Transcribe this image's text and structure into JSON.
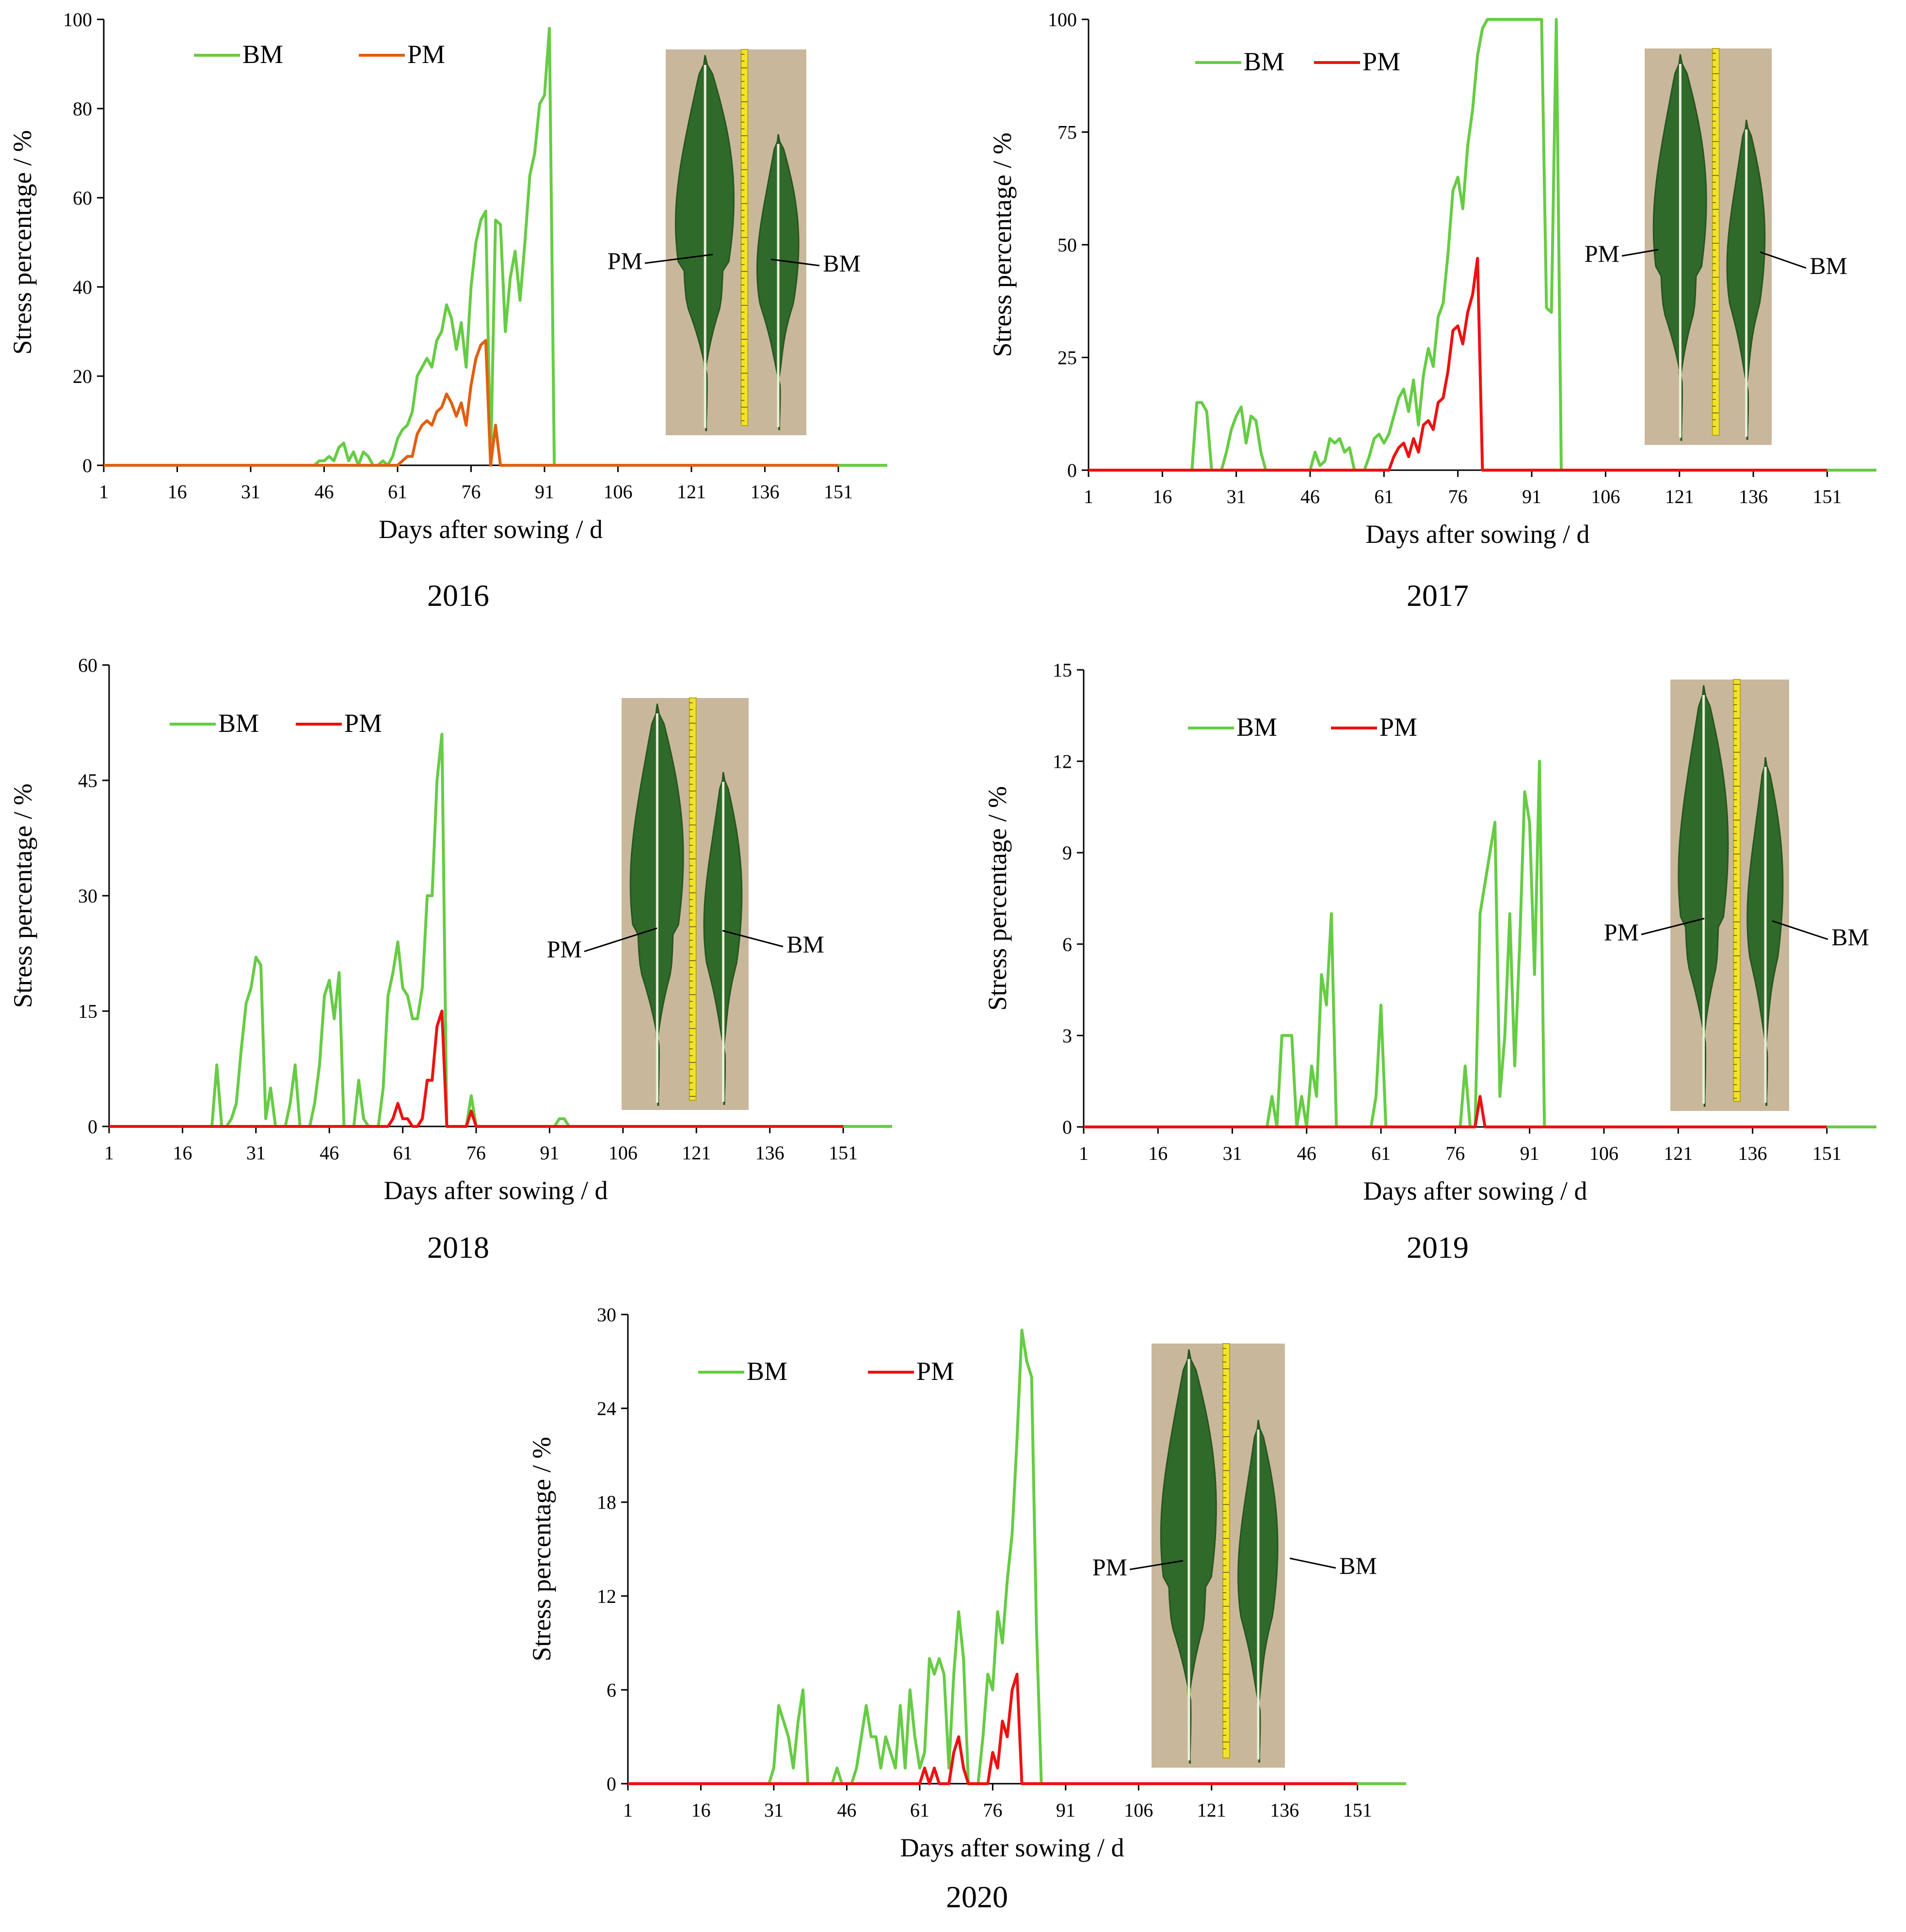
{
  "figure": {
    "series_colors": {
      "BM": "#66cc44",
      "PM_2016": "#e06010",
      "PM": "#ee1111"
    },
    "photo_colors": {
      "background": "#c9b79c",
      "leaf_dark": "#2f6a2a",
      "leaf_light": "#7fb53f",
      "ruler": "#f2e22a"
    }
  },
  "chart_data": [
    {
      "type": "line",
      "year": "2016",
      "xlabel": "Days after sowing / d",
      "ylabel": "Stress percentage / %",
      "xlim": [
        1,
        161
      ],
      "ylim": [
        0,
        100
      ],
      "xticks": [
        1,
        16,
        31,
        46,
        61,
        76,
        91,
        106,
        121,
        136,
        151
      ],
      "yticks": [
        0,
        20,
        40,
        60,
        80,
        100
      ],
      "legend": [
        "BM",
        "PM"
      ],
      "photo_labels": [
        "PM",
        "BM"
      ],
      "series": [
        {
          "name": "BM",
          "color": "#66cc44",
          "x": [
            1,
            44,
            45,
            46,
            47,
            48,
            49,
            50,
            51,
            52,
            53,
            54,
            55,
            56,
            57,
            58,
            59,
            60,
            61,
            62,
            63,
            64,
            65,
            66,
            67,
            68,
            69,
            70,
            71,
            72,
            73,
            74,
            75,
            76,
            77,
            78,
            79,
            80,
            81,
            82,
            83,
            84,
            85,
            86,
            87,
            88,
            89,
            90,
            91,
            92,
            93,
            94,
            95,
            152,
            161
          ],
          "y": [
            0,
            0,
            1,
            1,
            2,
            1,
            4,
            5,
            1,
            3,
            0,
            3,
            2,
            0,
            0,
            1,
            0,
            2,
            6,
            8,
            9,
            12,
            20,
            22,
            24,
            22,
            28,
            30,
            36,
            33,
            26,
            32,
            22,
            40,
            50,
            55,
            57,
            0,
            55,
            54,
            30,
            42,
            48,
            37,
            50,
            65,
            70,
            81,
            83,
            98,
            0,
            0,
            0,
            0,
            0
          ]
        },
        {
          "name": "PM",
          "color": "#e06010",
          "x": [
            1,
            61,
            62,
            63,
            64,
            65,
            66,
            67,
            68,
            69,
            70,
            71,
            72,
            73,
            74,
            75,
            76,
            77,
            78,
            79,
            80,
            81,
            82,
            151
          ],
          "y": [
            0,
            0,
            1,
            2,
            2,
            7,
            9,
            10,
            9,
            12,
            13,
            16,
            14,
            11,
            14,
            9,
            18,
            24,
            27,
            28,
            0,
            9,
            0,
            0
          ]
        }
      ]
    },
    {
      "type": "line",
      "year": "2017",
      "xlabel": "Days after sowing / d",
      "ylabel": "Stress percentage / %",
      "xlim": [
        1,
        161
      ],
      "ylim": [
        0,
        100
      ],
      "xticks": [
        1,
        16,
        31,
        46,
        61,
        76,
        91,
        106,
        121,
        136,
        151
      ],
      "yticks": [
        0,
        25,
        50,
        75,
        100
      ],
      "legend": [
        "BM",
        "PM"
      ],
      "photo_labels": [
        "PM",
        "BM"
      ],
      "series": [
        {
          "name": "BM",
          "color": "#66cc44",
          "x": [
            1,
            22,
            23,
            24,
            25,
            26,
            27,
            28,
            29,
            30,
            31,
            32,
            33,
            34,
            35,
            36,
            37,
            38,
            46,
            47,
            48,
            49,
            50,
            51,
            52,
            53,
            54,
            55,
            56,
            57,
            58,
            59,
            60,
            61,
            62,
            63,
            64,
            65,
            66,
            67,
            68,
            69,
            70,
            71,
            72,
            73,
            74,
            75,
            76,
            77,
            78,
            79,
            80,
            81,
            82,
            83,
            84,
            85,
            93,
            94,
            95,
            96,
            97,
            152,
            161
          ],
          "y": [
            0,
            0,
            15,
            15,
            13,
            0,
            0,
            0,
            4,
            9,
            12,
            14,
            6,
            12,
            11,
            4,
            0,
            0,
            0,
            4,
            1,
            2,
            7,
            6,
            7,
            4,
            5,
            0,
            0,
            0,
            3,
            7,
            8,
            6,
            8,
            12,
            16,
            18,
            13,
            20,
            10,
            21,
            27,
            23,
            34,
            37,
            48,
            62,
            65,
            58,
            72,
            80,
            92,
            98,
            100,
            100,
            100,
            100,
            100,
            36,
            35,
            100,
            0,
            0,
            0
          ]
        },
        {
          "name": "PM",
          "color": "#ee1111",
          "x": [
            1,
            62,
            63,
            64,
            65,
            66,
            67,
            68,
            69,
            70,
            71,
            72,
            73,
            74,
            75,
            76,
            77,
            78,
            79,
            80,
            81,
            82,
            83,
            151
          ],
          "y": [
            0,
            0,
            3,
            5,
            6,
            3,
            7,
            4,
            10,
            11,
            9,
            15,
            16,
            22,
            31,
            32,
            28,
            35,
            39,
            47,
            0,
            0,
            0,
            0
          ]
        }
      ]
    },
    {
      "type": "line",
      "year": "2018",
      "xlabel": "Days after sowing / d",
      "ylabel": "Stress percentage / %",
      "xlim": [
        1,
        161
      ],
      "ylim": [
        0,
        60
      ],
      "xticks": [
        1,
        16,
        31,
        46,
        61,
        76,
        91,
        106,
        121,
        136,
        151
      ],
      "yticks": [
        0,
        15,
        30,
        45,
        60
      ],
      "legend": [
        "BM",
        "PM"
      ],
      "photo_labels": [
        "PM",
        "BM"
      ],
      "series": [
        {
          "name": "BM",
          "color": "#66cc44",
          "x": [
            1,
            22,
            23,
            24,
            25,
            26,
            27,
            28,
            29,
            30,
            31,
            32,
            33,
            34,
            35,
            36,
            37,
            38,
            39,
            40,
            41,
            42,
            43,
            44,
            45,
            46,
            47,
            48,
            49,
            50,
            51,
            52,
            53,
            54,
            55,
            56,
            57,
            58,
            59,
            60,
            61,
            62,
            63,
            64,
            65,
            66,
            67,
            68,
            69,
            70,
            71,
            72,
            73,
            74,
            75,
            76,
            77,
            78,
            92,
            93,
            94,
            95,
            96,
            152,
            161
          ],
          "y": [
            0,
            0,
            8,
            0,
            0,
            1,
            3,
            10,
            16,
            18,
            22,
            21,
            1,
            5,
            0,
            0,
            0,
            3,
            8,
            0,
            0,
            0,
            3,
            8,
            17,
            19,
            14,
            20,
            0,
            0,
            0,
            6,
            1,
            0,
            0,
            0,
            5,
            17,
            20,
            24,
            18,
            17,
            14,
            14,
            18,
            30,
            30,
            45,
            51,
            0,
            0,
            0,
            0,
            0,
            4,
            0,
            0,
            0,
            0,
            1,
            1,
            0,
            0,
            0,
            0
          ]
        },
        {
          "name": "PM",
          "color": "#ee1111",
          "x": [
            1,
            58,
            59,
            60,
            61,
            62,
            63,
            64,
            65,
            66,
            67,
            68,
            69,
            70,
            71,
            72,
            73,
            74,
            75,
            76,
            77,
            151
          ],
          "y": [
            0,
            0,
            1,
            3,
            1,
            1,
            0,
            0,
            1,
            6,
            6,
            13,
            15,
            0,
            0,
            0,
            0,
            0,
            2,
            0,
            0,
            0
          ]
        }
      ]
    },
    {
      "type": "line",
      "year": "2019",
      "xlabel": "Days after sowing / d",
      "ylabel": "Stress percentage / %",
      "xlim": [
        1,
        161
      ],
      "ylim": [
        0,
        15
      ],
      "xticks": [
        1,
        16,
        31,
        46,
        61,
        76,
        91,
        106,
        121,
        136,
        151
      ],
      "yticks": [
        0,
        3,
        6,
        9,
        12,
        15
      ],
      "legend": [
        "BM",
        "PM"
      ],
      "photo_labels": [
        "PM",
        "BM"
      ],
      "series": [
        {
          "name": "BM",
          "color": "#66cc44",
          "x": [
            1,
            38,
            39,
            40,
            41,
            42,
            43,
            44,
            45,
            46,
            47,
            48,
            49,
            50,
            51,
            52,
            59,
            60,
            61,
            62,
            77,
            78,
            79,
            80,
            81,
            82,
            83,
            84,
            85,
            86,
            87,
            88,
            89,
            90,
            91,
            92,
            93,
            94,
            95,
            152,
            161
          ],
          "y": [
            0,
            0,
            1,
            0,
            3,
            3,
            3,
            0,
            1,
            0,
            2,
            1,
            5,
            4,
            7,
            0,
            0,
            1,
            4,
            0,
            0,
            2,
            0,
            0,
            7,
            8,
            9,
            10,
            1,
            3,
            7,
            2,
            6,
            11,
            10,
            5,
            12,
            0,
            0,
            0,
            0
          ]
        },
        {
          "name": "PM",
          "color": "#ee1111",
          "x": [
            1,
            80,
            81,
            82,
            151
          ],
          "y": [
            0,
            0,
            1,
            0,
            0
          ]
        }
      ]
    },
    {
      "type": "line",
      "year": "2020",
      "xlabel": "Days after sowing / d",
      "ylabel": "Stress percentage / %",
      "xlim": [
        1,
        161
      ],
      "ylim": [
        0,
        30
      ],
      "xticks": [
        1,
        16,
        31,
        46,
        61,
        76,
        91,
        106,
        121,
        136,
        151
      ],
      "yticks": [
        0,
        6,
        12,
        18,
        24,
        30
      ],
      "legend": [
        "BM",
        "PM"
      ],
      "photo_labels": [
        "PM",
        "BM"
      ],
      "series": [
        {
          "name": "BM",
          "color": "#66cc44",
          "x": [
            1,
            30,
            31,
            32,
            33,
            34,
            35,
            36,
            37,
            38,
            43,
            44,
            45,
            46,
            47,
            48,
            49,
            50,
            51,
            52,
            53,
            54,
            55,
            56,
            57,
            58,
            59,
            60,
            61,
            62,
            63,
            64,
            65,
            66,
            67,
            68,
            69,
            70,
            71,
            72,
            73,
            74,
            75,
            76,
            77,
            78,
            79,
            80,
            81,
            82,
            83,
            84,
            85,
            86,
            87,
            88,
            152,
            161
          ],
          "y": [
            0,
            0,
            1,
            5,
            4,
            3,
            1,
            4,
            6,
            0,
            0,
            1,
            0,
            0,
            0,
            1,
            3,
            5,
            3,
            3,
            1,
            3,
            2,
            1,
            5,
            1,
            6,
            3,
            1,
            2,
            8,
            7,
            8,
            7,
            1,
            7,
            11,
            8,
            0,
            0,
            0,
            3,
            7,
            6,
            11,
            9,
            13,
            16,
            22,
            29,
            27,
            26,
            10,
            0,
            0,
            0,
            0,
            0
          ]
        },
        {
          "name": "PM",
          "color": "#ee1111",
          "x": [
            1,
            60,
            61,
            62,
            63,
            64,
            65,
            66,
            67,
            68,
            69,
            70,
            71,
            72,
            73,
            74,
            75,
            76,
            77,
            78,
            79,
            80,
            81,
            82,
            83,
            151
          ],
          "y": [
            0,
            0,
            0,
            1,
            0,
            1,
            0,
            0,
            0,
            2,
            3,
            1,
            0,
            0,
            0,
            0,
            0,
            2,
            1,
            4,
            3,
            6,
            7,
            0,
            0,
            0
          ]
        }
      ]
    }
  ]
}
